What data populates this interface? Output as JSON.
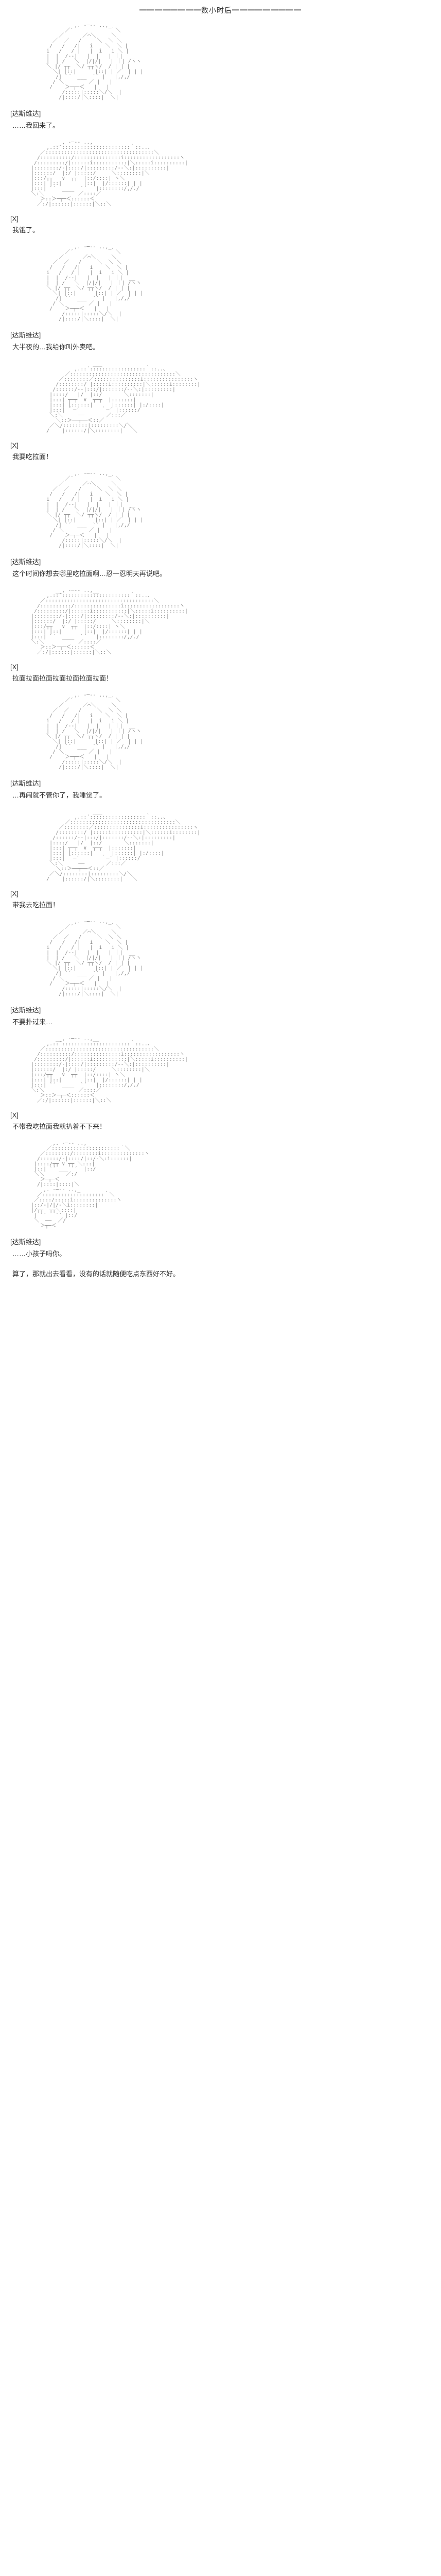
{
  "divider": "━━━━━━━━数小时后━━━━━━━━━",
  "panels": [
    {
      "speaker": "[达斯维达]",
      "line": "……我回来了。",
      "art_variant": 0
    },
    {
      "speaker": "[X]",
      "line": "我饿了。",
      "art_variant": 1
    },
    {
      "speaker": "[达斯维达]",
      "line": "大半夜的…我给你叫外卖吧。",
      "art_variant": 0
    },
    {
      "speaker": "[X]",
      "line": "我要吃拉面！",
      "art_variant": 2
    },
    {
      "speaker": "[达斯维达]",
      "line": "这个时间你想去哪里吃拉面啊…忍一忍明天再说吧。",
      "art_variant": 0
    },
    {
      "speaker": "[X]",
      "line": "拉面拉面拉面拉面拉面拉面拉面！",
      "art_variant": 1
    },
    {
      "speaker": "[达斯维达]",
      "line": "…再闹就不管你了，我睡觉了。",
      "art_variant": 0
    },
    {
      "speaker": "[X]",
      "line": "带我去吃拉面！",
      "art_variant": 2
    },
    {
      "speaker": "[达斯维达]",
      "line": "不要扑过来…",
      "art_variant": 0,
      "skip_art": false
    },
    {
      "speaker": "[X]",
      "line": "不带我吃拉面我就扒着不下来！",
      "art_variant": 1
    },
    {
      "speaker": "[达斯维达]",
      "line": "……小孩子吗你。",
      "art_variant": 3,
      "extra": "算了，那就出去看看，没有的话就随便吃点东西好不好。"
    }
  ],
  "art": {
    "v0": "              ,. -─‐- ..,_\n           ／´            ｀＼\n         ／      ／⌒＼     ＼\n       ／  ／   /     ＼  ＼ ＼\n      /   /   /|   i    ＼  ＼ |\n     i   /   / |   |  i   i ＼ |\n     |  |  /--|   |  |   | ｜|  __\n     |  | /   ＼  |/|/|   | ｜| /ヽヽ\n     ＼ |/ ┬┬  ＼/ ┬┬ヽ/  / | | |\n       ＼| |::|      |::| | ／  | | |\n        /| `´  ___  `´ |   |,/,/\n       / ＼        ／ |   |\n      /    ＞─┬─＜   |   |\n          /:::::|:::::＼/＼  |\n         /|::::/|＼::::|  ＼|",
    "v1": "        __, -─-- ..,__\n     ,.::´::::::::::::::::::::::｀::..、\n   ／:::::::::::::::::::::::::::::::::::＼\n  /::::::::::/:::::::::::::::i::::::::::::::::::ヽ\n /:::::::::/|::::::i:::::::::::|＼:::::i::::::::::|\n|::::::::/-|::::/|:::::::::/--＼:|::::::::::|\n|::::::/  |:/ |:::::/     ＼::::::::|＼\n|:::/┬┬   ∨  ┬┬  |::/::::| ヽ＼\n|:::| |::|       |::|  |/::::::| | |\n|:::| `´  ____  `´   |::::::::/,/./\n＼:＼           ／::::／\n   ＞::＞─┬─＜::::::＜\n  ／:/|::::::|::::::|＼::＼",
    "v2": "                    ___\n              ,.::´::::::::::::::::::｀::..、\n           ／::::::::::::::::::::::::::::::::::＼\n         ／::::::::／:::::::::::::::i::::::::::::::::ヽ\n        /::::::::/ |:::::i::::::::::|＼::::::i::::::::|\n       /::::::/-‐|:::/|:::::::/-‐＼:|:::::::::|\n      |::::/   |/  |::/       ＼:::::::|\n      |:::| ┬─┬  ∨  ┬─┬  |:::::::|\n      |:::| |::::::|      |::::::| |:/::::|\n      |:::| ｀─´       ｀─´ |::::::/\n      ＼:＼     ──       ／:::／\n        ＼::＞──┬──＜::／\n      ／＼/::::::::|:::::::::＼/＼\n     /    |::::::/|＼::::::::|   ＼",
    "v3": "       ,. -─-- ..,_\n     ／::::::::::::::::::::::｀＼\n   ／::::::::/::::::::i::::::::::::::ヽ\n  /::::::/-|::::/|::/-＼:i::::::|\n |::::/┬┬ ∨ ┬┬ ＼:::|\n |::| `´ ___ `´  |::/\n ＼＼       ／:/\n   ＞─┬─＜\n  /|::::|::::|＼\n    ,. -─-- ..,_\n  ／::::::::::::::::::::｀＼\n ／::::/:::::i::::::::::::::ヽ\n|::/-|/|/-＼i::::::::|\n|/┬┬  ┬┬＼::::|\n | `´   `´ |::/\n ＼  ──  ／/\n   ＞┬─＜"
  },
  "colors": {
    "text": "#333333",
    "art": "#888888",
    "bg": "#ffffff"
  }
}
